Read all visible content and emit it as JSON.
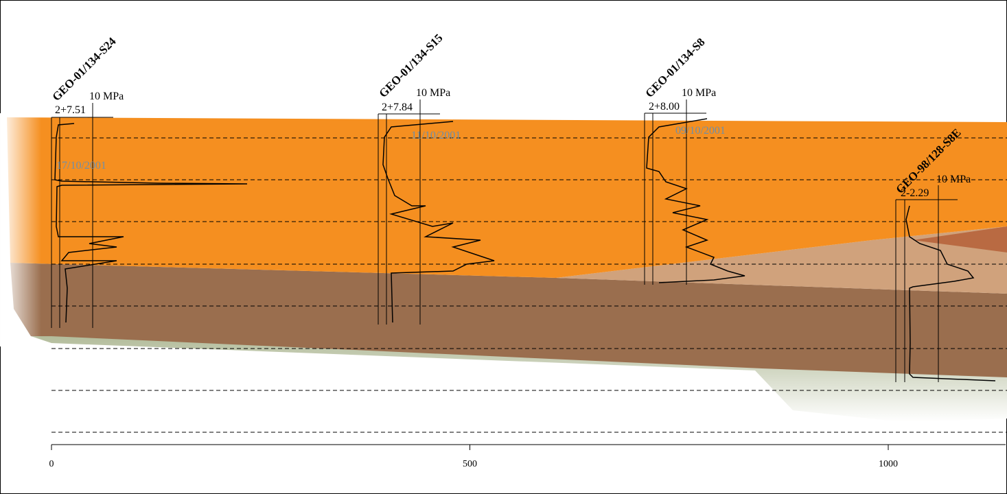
{
  "boreholes": [
    {
      "name": "GEO-01/134-S24",
      "elevation": "2+7.51",
      "scale": "10 MPa",
      "date": "17/10/2001"
    },
    {
      "name": "GEO-01/134-S15",
      "elevation": "2+7.84",
      "scale": "10 MPa",
      "date": "11/10/2001"
    },
    {
      "name": "GEO-01/134-S8",
      "elevation": "2+8.00",
      "scale": "10 MPa",
      "date": "09/10/2001"
    },
    {
      "name": "GEO-98/128-S8E",
      "elevation": "2-2.29",
      "scale": "10 MPa"
    }
  ],
  "axis": {
    "ticks": [
      0,
      500,
      1000
    ]
  }
}
